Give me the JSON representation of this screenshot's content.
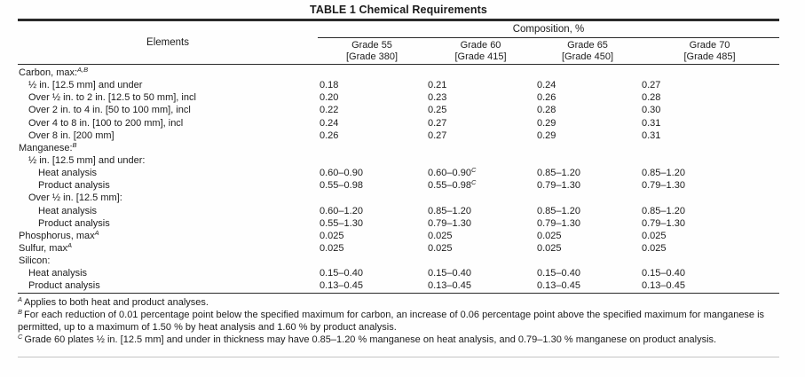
{
  "title": "TABLE 1 Chemical Requirements",
  "table": {
    "composition_header": "Composition, %",
    "elements_header": "Elements",
    "grade_columns": [
      {
        "grade": "Grade 55",
        "metric": "[Grade 380]"
      },
      {
        "grade": "Grade 60",
        "metric": "[Grade 415]"
      },
      {
        "grade": "Grade 65",
        "metric": "[Grade 450]"
      },
      {
        "grade": "Grade 70",
        "metric": "[Grade 485]"
      }
    ],
    "rows": [
      {
        "label": "Carbon, max:^A,B",
        "indent": 0,
        "values": [
          "",
          "",
          "",
          ""
        ]
      },
      {
        "label": "½ in. [12.5 mm] and under",
        "indent": 1,
        "values": [
          "0.18",
          "0.21",
          "0.24",
          "0.27"
        ]
      },
      {
        "label": "Over ½ in. to 2 in. [12.5 to 50 mm], incl",
        "indent": 1,
        "values": [
          "0.20",
          "0.23",
          "0.26",
          "0.28"
        ]
      },
      {
        "label": "Over 2 in. to 4 in. [50 to 100 mm], incl",
        "indent": 1,
        "values": [
          "0.22",
          "0.25",
          "0.28",
          "0.30"
        ]
      },
      {
        "label": "Over 4 to 8 in. [100 to 200 mm], incl",
        "indent": 1,
        "values": [
          "0.24",
          "0.27",
          "0.29",
          "0.31"
        ]
      },
      {
        "label": "Over 8 in. [200 mm]",
        "indent": 1,
        "values": [
          "0.26",
          "0.27",
          "0.29",
          "0.31"
        ]
      },
      {
        "label": "Manganese:^B",
        "indent": 0,
        "values": [
          "",
          "",
          "",
          ""
        ]
      },
      {
        "label": "½ in. [12.5 mm] and under:",
        "indent": 1,
        "values": [
          "",
          "",
          "",
          ""
        ]
      },
      {
        "label": "Heat analysis",
        "indent": 2,
        "values": [
          "0.60–0.90",
          "0.60–0.90^C",
          "0.85–1.20",
          "0.85–1.20"
        ]
      },
      {
        "label": "Product analysis",
        "indent": 2,
        "values": [
          "0.55–0.98",
          "0.55–0.98^C",
          "0.79–1.30",
          "0.79–1.30"
        ]
      },
      {
        "label": "Over ½ in. [12.5 mm]:",
        "indent": 1,
        "values": [
          "",
          "",
          "",
          ""
        ]
      },
      {
        "label": "Heat analysis",
        "indent": 2,
        "values": [
          "0.60–1.20",
          "0.85–1.20",
          "0.85–1.20",
          "0.85–1.20"
        ]
      },
      {
        "label": "Product analysis",
        "indent": 2,
        "values": [
          "0.55–1.30",
          "0.79–1.30",
          "0.79–1.30",
          "0.79–1.30"
        ]
      },
      {
        "label": "Phosphorus, max^A",
        "indent": 0,
        "values": [
          "0.025",
          "0.025",
          "0.025",
          "0.025"
        ]
      },
      {
        "label": "Sulfur, max^A",
        "indent": 0,
        "values": [
          "0.025",
          "0.025",
          "0.025",
          "0.025"
        ]
      },
      {
        "label": "Silicon:",
        "indent": 0,
        "values": [
          "",
          "",
          "",
          ""
        ]
      },
      {
        "label": "Heat analysis",
        "indent": 1,
        "values": [
          "0.15–0.40",
          "0.15–0.40",
          "0.15–0.40",
          "0.15–0.40"
        ]
      },
      {
        "label": "Product analysis",
        "indent": 1,
        "values": [
          "0.13–0.45",
          "0.13–0.45",
          "0.13–0.45",
          "0.13–0.45"
        ]
      }
    ]
  },
  "footnotes": [
    {
      "sup": "A",
      "text": "Applies to both heat and product analyses."
    },
    {
      "sup": "B",
      "text": "For each reduction of 0.01 percentage point below the specified maximum for carbon, an increase of 0.06 percentage point above the specified maximum for manganese is permitted, up to a maximum of 1.50 % by heat analysis and 1.60 % by product analysis."
    },
    {
      "sup": "C",
      "text": "Grade 60 plates ½ in. [12.5 mm] and under in thickness may have 0.85–1.20 % manganese on heat analysis, and 0.79–1.30 % manganese on product analysis."
    }
  ]
}
